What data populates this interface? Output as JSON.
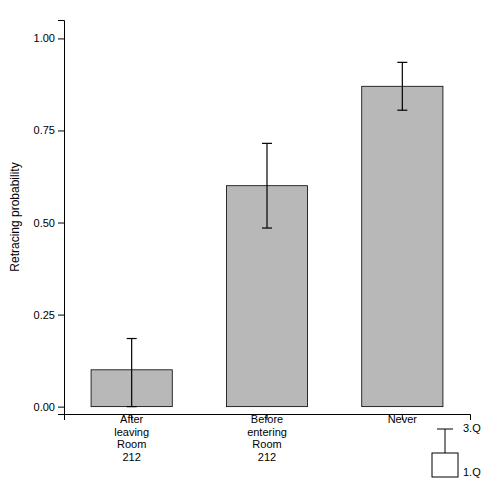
{
  "chart_data": {
    "type": "bar",
    "categories": [
      "After\nleaving\nRoom\n212",
      "Before\nentering\nRoom\n212",
      "Never"
    ],
    "values": [
      0.1,
      0.6,
      0.87
    ],
    "error_lower": [
      0.1,
      0.115,
      0.065
    ],
    "error_upper": [
      0.085,
      0.115,
      0.065
    ],
    "color": "#b8b8b8",
    "ylabel": "Retracing probability",
    "ylim": [
      -0.02,
      1.05
    ],
    "yticks": [
      {
        "value": 0.0,
        "label": "0.00"
      },
      {
        "value": 0.25,
        "label": "0.25"
      },
      {
        "value": 0.5,
        "label": "0.50"
      },
      {
        "value": 0.75,
        "label": "0.75"
      },
      {
        "value": 1.0,
        "label": "1.00"
      }
    ],
    "annotations": [
      "3.Q",
      "1.Q"
    ],
    "grid": false
  }
}
